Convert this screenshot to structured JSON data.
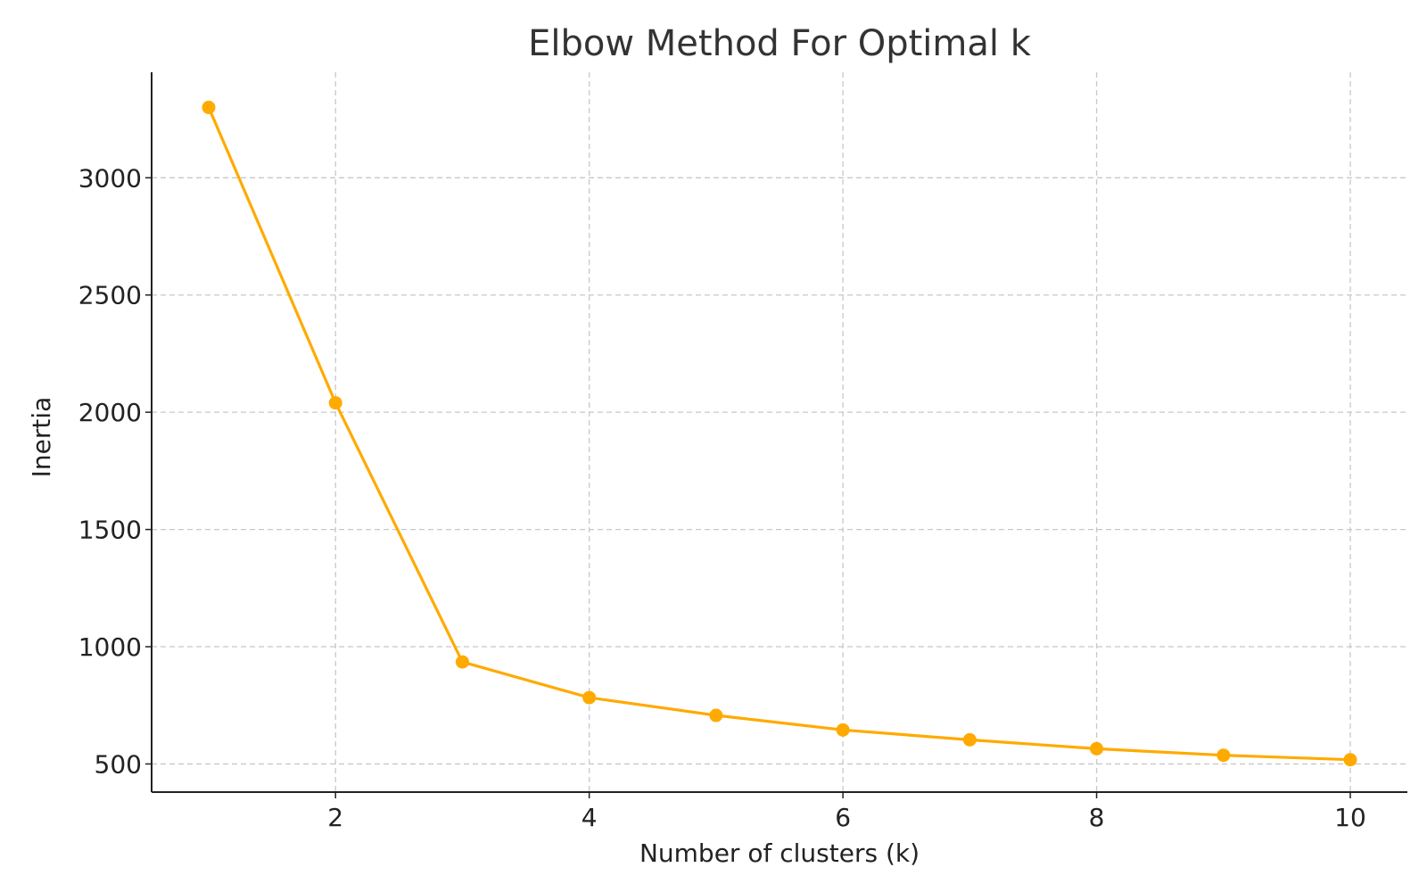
{
  "chart_data": {
    "type": "line",
    "title": "Elbow Method For Optimal k",
    "xlabel": "Number of clusters (k)",
    "ylabel": "Inertia",
    "xlim": [
      0.55,
      10.45
    ],
    "ylim": [
      380,
      3450
    ],
    "x_ticks": [
      2,
      4,
      6,
      8,
      10
    ],
    "x_tick_labels": [
      "2",
      "4",
      "6",
      "8",
      "10"
    ],
    "y_ticks": [
      500,
      1000,
      1500,
      2000,
      2500,
      3000
    ],
    "y_tick_labels": [
      "500",
      "1000",
      "1500",
      "2000",
      "2500",
      "3000"
    ],
    "grid": true,
    "line_color": "#FFAA00",
    "series": [
      {
        "x": [
          1,
          2,
          3,
          4,
          5,
          6,
          7,
          8,
          9,
          10
        ],
        "values": [
          3300,
          2040,
          935,
          783,
          707,
          645,
          603,
          565,
          537,
          518
        ]
      }
    ]
  }
}
